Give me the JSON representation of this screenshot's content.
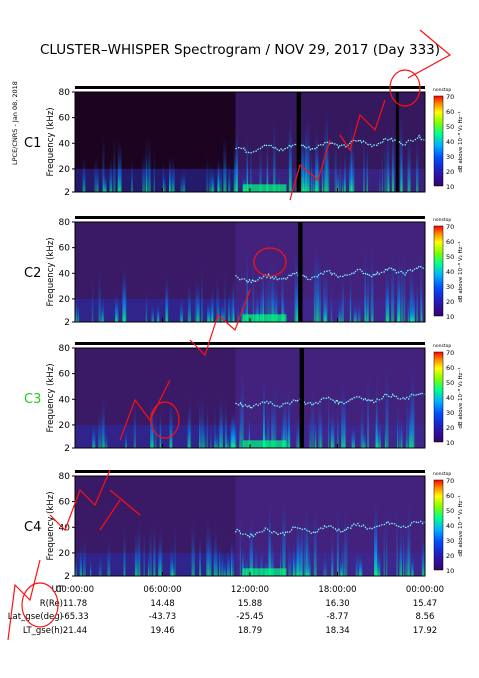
{
  "title": "CLUSTER–WHISPER Spectrogram / NOV 29, 2017 (Day 333)",
  "side_credit": "LPCE/CNRS - Jan 08, 2018",
  "chart_data": [
    {
      "type": "heatmap",
      "spacecraft": "C1",
      "spacecraft_color": "#000000",
      "ylabel": "Frequency (kHz)",
      "yticks": [
        2,
        20,
        40,
        60,
        80
      ],
      "ylim": [
        2,
        80
      ],
      "colorbar_label": "dB above 10⁻⁸ V₂ Hz⁻¹",
      "colorbar_ticks": [
        10,
        20,
        30,
        40,
        50,
        60,
        70
      ],
      "colorbar_range": [
        10,
        70
      ],
      "colorbar_top": "nonstop",
      "data_gaps_hours": [
        [
          15.2,
          15.5
        ],
        [
          22.0,
          22.2
        ]
      ]
    },
    {
      "type": "heatmap",
      "spacecraft": "C2",
      "spacecraft_color": "#000000",
      "ylabel": "Frequency (kHz)",
      "yticks": [
        2,
        20,
        40,
        60,
        80
      ],
      "ylim": [
        2,
        80
      ],
      "colorbar_label": "dB above 10⁻⁸ V₂ Hz⁻¹",
      "colorbar_ticks": [
        10,
        20,
        30,
        40,
        50,
        60,
        70
      ],
      "colorbar_range": [
        10,
        70
      ],
      "colorbar_top": "nonstop",
      "data_gaps_hours": [
        [
          15.3,
          15.6
        ]
      ]
    },
    {
      "type": "heatmap",
      "spacecraft": "C3",
      "spacecraft_color": "#22cc22",
      "ylabel": "Frequency (kHz)",
      "yticks": [
        2,
        20,
        40,
        60,
        80
      ],
      "ylim": [
        2,
        80
      ],
      "colorbar_label": "dB above 10⁻⁸ V₂ Hz⁻¹",
      "colorbar_ticks": [
        10,
        20,
        30,
        40,
        50,
        60,
        70
      ],
      "colorbar_range": [
        10,
        70
      ],
      "colorbar_top": "nonstop",
      "data_gaps_hours": [
        [
          15.4,
          15.7
        ]
      ]
    },
    {
      "type": "heatmap",
      "spacecraft": "C4",
      "spacecraft_color": "#000000",
      "ylabel": "Frequency (kHz)",
      "yticks": [
        2,
        20,
        40,
        60,
        80
      ],
      "ylim": [
        2,
        80
      ],
      "colorbar_label": "dB above 10⁻⁸ V₂ Hz⁻¹",
      "colorbar_ticks": [
        10,
        20,
        30,
        40,
        50,
        60,
        70
      ],
      "colorbar_range": [
        10,
        70
      ],
      "colorbar_top": "nonstop",
      "data_gaps_hours": []
    }
  ],
  "x_axis": {
    "rows": [
      {
        "label": "UT",
        "values": [
          "00:00:00",
          "06:00:00",
          "12:00:00",
          "18:00:00",
          "00:00:00"
        ]
      },
      {
        "label": "R(Re)",
        "values": [
          "11.78",
          "14.48",
          "15.88",
          "16.30",
          "15.47"
        ]
      },
      {
        "label": "Lat_gse(deg)",
        "values": [
          "-65.33",
          "-43.73",
          "-25.45",
          "-8.77",
          "8.56"
        ]
      },
      {
        "label": "LT_gse(h)",
        "values": [
          "21.44",
          "19.46",
          "18.79",
          "18.34",
          "17.92"
        ]
      }
    ],
    "ticks_hours": [
      0,
      6,
      12,
      18,
      24
    ],
    "xlim_hours": [
      0,
      24
    ]
  },
  "colors": {
    "colormap": [
      "#1a0030",
      "#2a1a6e",
      "#0000ff",
      "#0080ff",
      "#00e0ff",
      "#00ff80",
      "#80ff00",
      "#ffff00",
      "#ff8000",
      "#ff0000"
    ],
    "annotation_red": "#ff1010"
  }
}
